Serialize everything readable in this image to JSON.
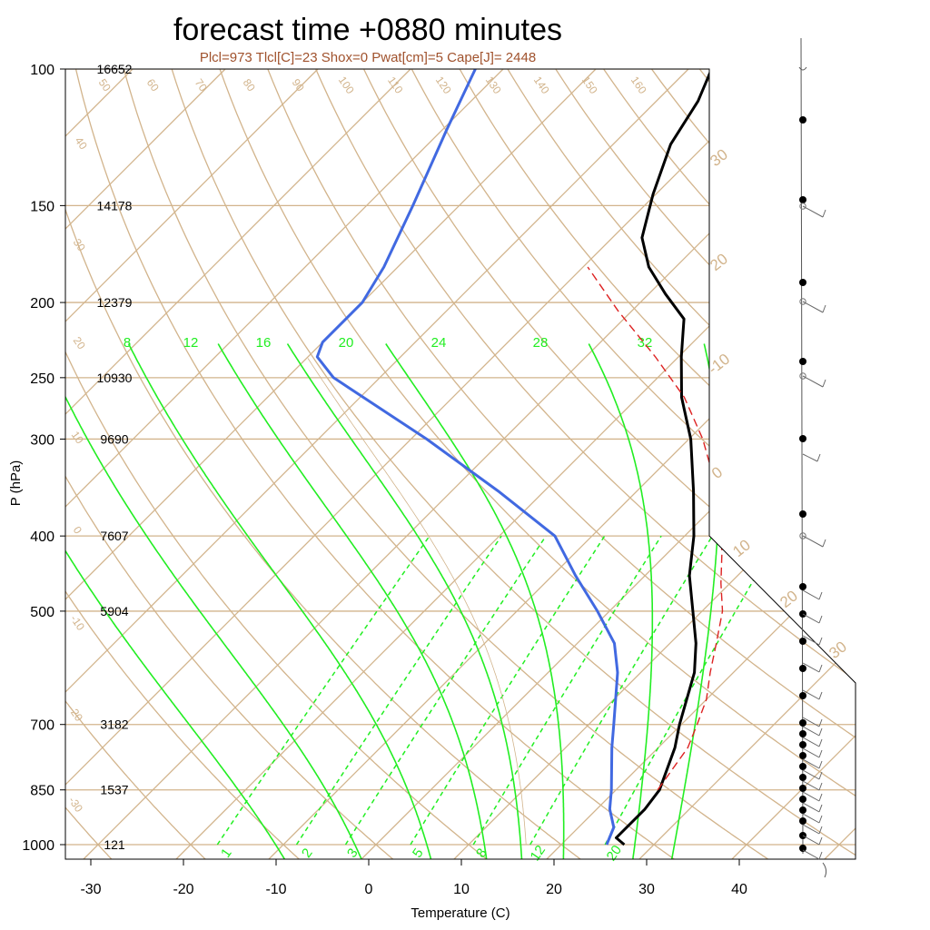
{
  "title": "forecast time +0880 minutes",
  "subtitle": "Plcl=973 Tlcl[C]=23 Shox=0 Pwat[cm]=5 Cape[J]= 2448",
  "colors": {
    "grid": "#d2b48c",
    "temperature": "#000000",
    "dewpoint": "#4169e1",
    "parcel": "#dd2222",
    "moist_adiabat": "#22ee22",
    "mixing_ratio": "#22ee22"
  },
  "chart_data": {
    "type": "line",
    "xlabel": "Temperature (C)",
    "ylabel": "P (hPa)",
    "xlim": [
      -34,
      43
    ],
    "ylim": [
      1030,
      100
    ],
    "y_scale": "log",
    "skew": "skew-T log-P",
    "x_ticks": [
      "-30",
      "-20",
      "-10",
      "0",
      "10",
      "20",
      "30",
      "40"
    ],
    "pressure_levels": [
      {
        "p": 100,
        "label": "100",
        "height": "16652"
      },
      {
        "p": 150,
        "label": "150",
        "height": "14178"
      },
      {
        "p": 200,
        "label": "200",
        "height": "12379"
      },
      {
        "p": 250,
        "label": "250",
        "height": "10930"
      },
      {
        "p": 300,
        "label": "300",
        "height": "9690"
      },
      {
        "p": 400,
        "label": "400",
        "height": "7607"
      },
      {
        "p": 500,
        "label": "500",
        "height": "5904"
      },
      {
        "p": 700,
        "label": "700",
        "height": "3182"
      },
      {
        "p": 850,
        "label": "850",
        "height": "1537"
      },
      {
        "p": 1000,
        "label": "1000",
        "height": "121"
      }
    ],
    "isotherm_labels": [
      "30",
      "20",
      "-10",
      "0",
      "10",
      "20",
      "30"
    ],
    "dry_adiabat_labels": [
      "50",
      "60",
      "70",
      "80",
      "90",
      "100",
      "110",
      "120",
      "130",
      "140",
      "150",
      "160",
      "40",
      "30",
      "20",
      "10",
      "0",
      "-10",
      "-20",
      "-30"
    ],
    "moist_adiabat_labels": [
      "8",
      "12",
      "16",
      "20",
      "24",
      "28",
      "32"
    ],
    "mixing_ratio_labels": [
      "1",
      "2",
      "3",
      "5",
      "8",
      "12",
      "20"
    ],
    "series": [
      {
        "key": "temperature",
        "points": [
          [
            26.8,
            1000
          ],
          [
            25.2,
            980
          ],
          [
            25.2,
            900
          ],
          [
            24.7,
            850
          ],
          [
            21.8,
            750
          ],
          [
            19.8,
            700
          ],
          [
            15.8,
            600
          ],
          [
            12.8,
            550
          ],
          [
            9.0,
            500
          ],
          [
            4.8,
            450
          ],
          [
            1.0,
            400
          ],
          [
            -3.9,
            350
          ],
          [
            -9.8,
            300
          ],
          [
            -15.3,
            265
          ],
          [
            -19.7,
            235
          ],
          [
            -23.5,
            210
          ],
          [
            -28.2,
            195
          ],
          [
            -32.9,
            180
          ],
          [
            -36.8,
            165
          ],
          [
            -40.3,
            145
          ],
          [
            -43.8,
            125
          ],
          [
            -45.5,
            110
          ],
          [
            -47.5,
            100
          ]
        ]
      },
      {
        "key": "dewpoint",
        "points": [
          [
            24.9,
            1000
          ],
          [
            23.8,
            950
          ],
          [
            21.4,
            900
          ],
          [
            19.5,
            850
          ],
          [
            15.0,
            750
          ],
          [
            12.7,
            700
          ],
          [
            7.5,
            600
          ],
          [
            4.0,
            550
          ],
          [
            -1.3,
            500
          ],
          [
            -7.5,
            450
          ],
          [
            -14.0,
            400
          ],
          [
            -25.0,
            350
          ],
          [
            -38.3,
            300
          ],
          [
            -55.0,
            250
          ],
          [
            -59.0,
            235
          ],
          [
            -60.0,
            225
          ],
          [
            -60.0,
            200
          ],
          [
            -61.5,
            180
          ],
          [
            -65.0,
            150
          ],
          [
            -69.5,
            120
          ],
          [
            -73.0,
            100
          ]
        ]
      },
      {
        "key": "parcel",
        "points": [
          [
            24.5,
            850
          ],
          [
            23.2,
            750
          ],
          [
            21.7,
            700
          ],
          [
            20.0,
            650
          ],
          [
            17.5,
            600
          ],
          [
            15.0,
            550
          ],
          [
            12.2,
            500
          ],
          [
            9.0,
            460
          ],
          [
            5.8,
            420
          ],
          [
            2.0,
            380
          ],
          [
            -2.0,
            345
          ],
          [
            -8.5,
            300
          ],
          [
            -15.0,
            265
          ],
          [
            -22.5,
            235
          ],
          [
            -31.5,
            205
          ],
          [
            -39.5,
            180
          ]
        ]
      }
    ]
  }
}
